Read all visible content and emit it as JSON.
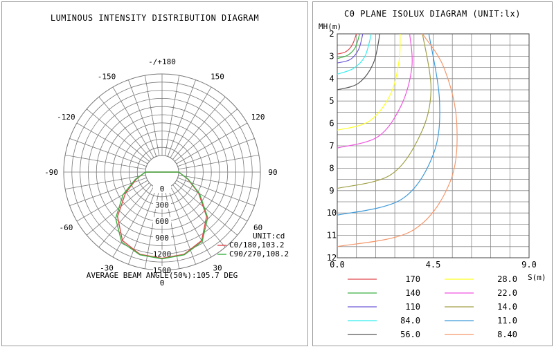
{
  "chart_data": [
    {
      "type": "polar-line",
      "title": "LUMINOUS INTENSITY DISTRIBUTION DIAGRAM",
      "unit_label": "UNIT:cd",
      "angle_labels": [
        "-/+180",
        "150",
        "120",
        "90",
        "60",
        "30",
        "0",
        "-30",
        "-60",
        "-90",
        "-120",
        "-150"
      ],
      "angle_values": [
        180,
        150,
        120,
        90,
        60,
        30,
        0,
        -30,
        -60,
        -90,
        -120,
        -150
      ],
      "radial_ticks": [
        0,
        300,
        600,
        900,
        1200,
        1500
      ],
      "radial_tick_labels": [
        "0",
        "300",
        "600",
        "900",
        "1200",
        "1500"
      ],
      "radial_max": 1500,
      "series": [
        {
          "name": "C0/180,103.2",
          "color": "#e0474c",
          "angles": [
            -90,
            -75,
            -60,
            -45,
            -30,
            -15,
            0,
            15,
            30,
            45,
            60,
            75,
            90
          ],
          "values": [
            0,
            180,
            470,
            850,
            1150,
            1260,
            1280,
            1260,
            1150,
            850,
            470,
            180,
            0
          ]
        },
        {
          "name": "C90/270,108.2",
          "color": "#3cb043",
          "angles": [
            -90,
            -75,
            -60,
            -45,
            -30,
            -15,
            0,
            15,
            30,
            45,
            60,
            75,
            90
          ],
          "values": [
            0,
            200,
            520,
            900,
            1180,
            1270,
            1290,
            1270,
            1170,
            880,
            490,
            190,
            0
          ]
        }
      ],
      "footer": "AVERAGE BEAM ANGLE(50%):105.7 DEG"
    },
    {
      "type": "isolux",
      "title": "C0 PLANE ISOLUX DIAGRAM (UNIT:lx)",
      "ylabel": "MH(m)",
      "xlabel": "S(m)",
      "x_range": [
        0,
        9
      ],
      "y_range": [
        2,
        12
      ],
      "x_tick_labels": [
        "0.0",
        "4.5",
        "9.0"
      ],
      "x_tick_values": [
        0,
        4.5,
        9
      ],
      "y_tick_labels": [
        "2",
        "3",
        "4",
        "5",
        "6",
        "7",
        "8",
        "9",
        "10",
        "11",
        "12"
      ],
      "y_tick_values": [
        2,
        3,
        4,
        5,
        6,
        7,
        8,
        9,
        10,
        11,
        12
      ],
      "grid": true,
      "contours": [
        {
          "label": "170",
          "color": "#e0474c",
          "values": [
            [
              0.0,
              2.9
            ],
            [
              0.4,
              2.8
            ],
            [
              0.7,
              2.5
            ],
            [
              0.9,
              2.0
            ]
          ]
        },
        {
          "label": "140",
          "color": "#3cb043",
          "values": [
            [
              0.0,
              3.1
            ],
            [
              0.5,
              2.95
            ],
            [
              0.85,
              2.6
            ],
            [
              1.05,
              2.0
            ]
          ]
        },
        {
          "label": "110",
          "color": "#6f5bd6",
          "values": [
            [
              0.0,
              3.3
            ],
            [
              0.6,
              3.15
            ],
            [
              1.0,
              2.7
            ],
            [
              1.2,
              2.0
            ]
          ]
        },
        {
          "label": "84.0",
          "color": "#33eeee",
          "values": [
            [
              0.0,
              3.8
            ],
            [
              0.75,
              3.55
            ],
            [
              1.3,
              3.0
            ],
            [
              1.6,
              2.0
            ]
          ]
        },
        {
          "label": "56.0",
          "color": "#555555",
          "values": [
            [
              0.0,
              4.5
            ],
            [
              1.0,
              4.2
            ],
            [
              1.7,
              3.3
            ],
            [
              2.0,
              2.0
            ]
          ]
        },
        {
          "label": "28.0",
          "color": "#ffff22",
          "values": [
            [
              0.0,
              6.3
            ],
            [
              1.5,
              5.9
            ],
            [
              2.5,
              4.7
            ],
            [
              2.9,
              3.2
            ],
            [
              2.95,
              2.0
            ]
          ]
        },
        {
          "label": "22.0",
          "color": "#f054e0",
          "values": [
            [
              0.0,
              7.1
            ],
            [
              1.9,
              6.6
            ],
            [
              3.0,
              5.2
            ],
            [
              3.5,
              3.5
            ],
            [
              3.4,
              2.0
            ]
          ]
        },
        {
          "label": "14.0",
          "color": "#a0a048",
          "values": [
            [
              0.0,
              8.9
            ],
            [
              2.5,
              8.3
            ],
            [
              3.9,
              6.5
            ],
            [
              4.4,
              4.5
            ],
            [
              4.0,
              2.0
            ]
          ]
        },
        {
          "label": "11.0",
          "color": "#3f9ad8",
          "values": [
            [
              0.0,
              10.1
            ],
            [
              3.0,
              9.4
            ],
            [
              4.5,
              7.4
            ],
            [
              4.8,
              5.0
            ],
            [
              4.3,
              2.0
            ]
          ]
        },
        {
          "label": "8.40",
          "color": "#f5966a",
          "values": [
            [
              0.0,
              11.5
            ],
            [
              3.5,
              10.8
            ],
            [
              5.3,
              8.6
            ],
            [
              5.6,
              5.9
            ],
            [
              5.0,
              3.5
            ],
            [
              4.0,
              2.0
            ]
          ]
        }
      ]
    }
  ]
}
